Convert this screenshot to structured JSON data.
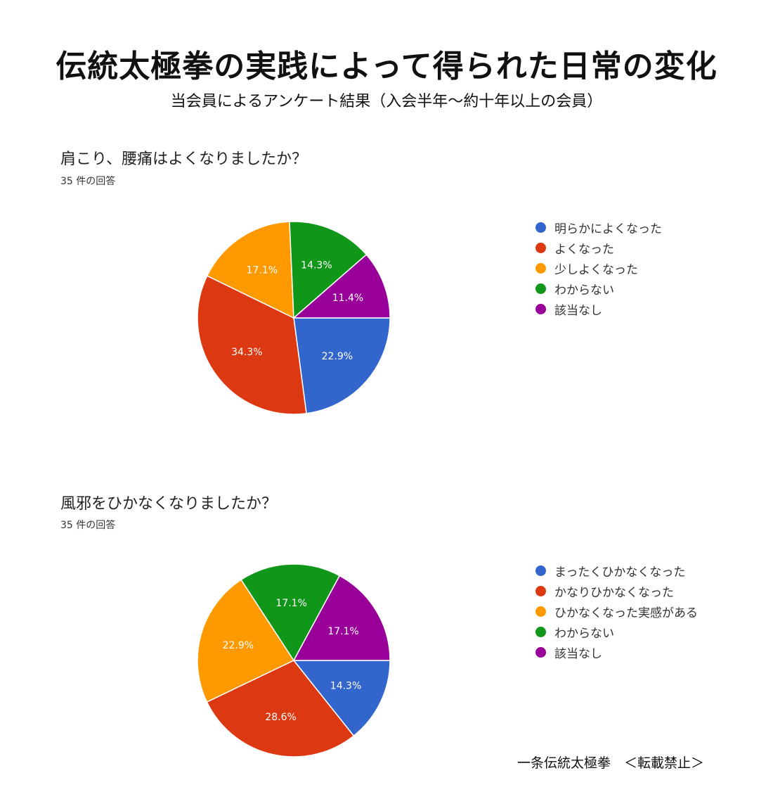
{
  "header": {
    "title": "伝統太極拳の実践によって得られた日常の変化",
    "subtitle": "当会員によるアンケート結果（入会半年～約十年以上の会員）"
  },
  "footer": {
    "text": "一条伝統太極拳　＜転載禁止＞"
  },
  "chart_data": [
    {
      "type": "pie",
      "title": "肩こり、腰痛はよくなりましたか？",
      "subtitle": "35 件の回答",
      "legend_position": "right",
      "categories": [
        "明らかによくなった",
        "よくなった",
        "少しよくなった",
        "わからない",
        "該当なし"
      ],
      "values": [
        22.9,
        34.3,
        17.1,
        14.3,
        11.4
      ],
      "labels": [
        "22.9%",
        "34.3%",
        "17.1%",
        "14.3%",
        "11.4%"
      ],
      "colors": [
        "#3366cc",
        "#dc3912",
        "#ff9900",
        "#109618",
        "#990099"
      ]
    },
    {
      "type": "pie",
      "title": "風邪をひかなくなりましたか？",
      "subtitle": "35 件の回答",
      "legend_position": "right",
      "categories": [
        "まったくひかなくなった",
        "かなりひかなくなった",
        "ひかなくなった実感がある",
        "わからない",
        "該当なし"
      ],
      "values": [
        14.3,
        28.6,
        22.9,
        17.1,
        17.1
      ],
      "labels": [
        "14.3%",
        "28.6%",
        "22.9%",
        "17.1%",
        "17.1%"
      ],
      "colors": [
        "#3366cc",
        "#dc3912",
        "#ff9900",
        "#109618",
        "#990099"
      ]
    }
  ]
}
